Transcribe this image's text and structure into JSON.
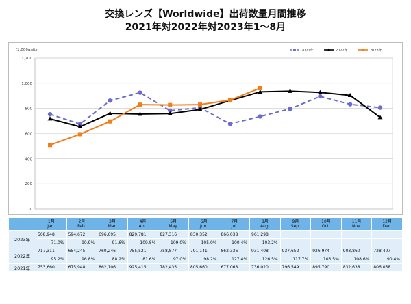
{
  "title": "交換レンズ【Worldwide】出荷数量月間推移",
  "subtitle": "2021年対2022年対2023年1～8月",
  "chart_data": {
    "type": "line",
    "unit_label": "(1,000units)",
    "categories": [
      "1月",
      "2月",
      "3月",
      "4月",
      "5月",
      "6月",
      "7月",
      "8月",
      "9月",
      "10月",
      "11月",
      "12月"
    ],
    "categories_en": [
      "Jan.",
      "Feb.",
      "Mar.",
      "Apr.",
      "May.",
      "Jun.",
      "Jul.",
      "Aug.",
      "Sep.",
      "Oct.",
      "Nov.",
      "Dec."
    ],
    "ylim": [
      0,
      1200
    ],
    "yticks": [
      0,
      200,
      400,
      600,
      800,
      1000,
      1200
    ],
    "ytick_labels": [
      "0",
      "200",
      "400",
      "600",
      "800",
      "1,000",
      "1,200"
    ],
    "grid": true,
    "legend_position": "top-right",
    "series": [
      {
        "name": "2021年",
        "color": "#6a6ad0",
        "dashed": true,
        "marker": "circle",
        "values": [
          753.66,
          675.948,
          862.106,
          925.415,
          782.435,
          805.66,
          677.068,
          736.02,
          796.549,
          895.79,
          832.638,
          806.058
        ]
      },
      {
        "name": "2022年",
        "color": "#000000",
        "dashed": false,
        "marker": "triangle",
        "values": [
          717.311,
          654.245,
          760.246,
          755.521,
          758.877,
          791.141,
          862.336,
          931.408,
          937.652,
          926.974,
          903.86,
          728.407
        ]
      },
      {
        "name": "2023年",
        "color": "#f07f1a",
        "dashed": false,
        "marker": "square",
        "values": [
          508.948,
          594.672,
          696.695,
          829.781,
          827.316,
          830.352,
          866.038,
          961.298,
          null,
          null,
          null,
          null
        ]
      }
    ]
  },
  "table": {
    "months": [
      {
        "jp": "1月",
        "en": "Jan."
      },
      {
        "jp": "2月",
        "en": "Feb."
      },
      {
        "jp": "3月",
        "en": "Mar."
      },
      {
        "jp": "4月",
        "en": "Apr."
      },
      {
        "jp": "5月",
        "en": "May."
      },
      {
        "jp": "6月",
        "en": "Jun."
      },
      {
        "jp": "7月",
        "en": "Jul."
      },
      {
        "jp": "8月",
        "en": "Aug."
      },
      {
        "jp": "9月",
        "en": "Sep."
      },
      {
        "jp": "10月",
        "en": "Oct."
      },
      {
        "jp": "11月",
        "en": "Nov."
      },
      {
        "jp": "12月",
        "en": "Dec."
      }
    ],
    "rows": [
      {
        "year": "2023年",
        "values": [
          "508,948",
          "594,672",
          "696,695",
          "829,781",
          "827,316",
          "830,352",
          "866,038",
          "961,298",
          "",
          "",
          "",
          ""
        ],
        "pct": [
          "71.0%",
          "90.9%",
          "91.6%",
          "109.8%",
          "109.0%",
          "105.0%",
          "100.4%",
          "103.2%",
          "",
          "",
          "",
          ""
        ]
      },
      {
        "year": "2022年",
        "values": [
          "717,311",
          "654,245",
          "760,246",
          "755,521",
          "758,877",
          "791,141",
          "862,336",
          "931,408",
          "937,652",
          "926,974",
          "903,860",
          "728,407"
        ],
        "pct": [
          "95.2%",
          "96.8%",
          "88.2%",
          "81.6%",
          "97.0%",
          "98.2%",
          "127.4%",
          "126.5%",
          "117.7%",
          "103.5%",
          "108.6%",
          "90.4%"
        ]
      },
      {
        "year": "2021年",
        "values": [
          "753,660",
          "675,948",
          "862,106",
          "925,415",
          "782,435",
          "805,660",
          "677,068",
          "736,020",
          "796,549",
          "895,790",
          "832,638",
          "806,058"
        ]
      }
    ]
  }
}
